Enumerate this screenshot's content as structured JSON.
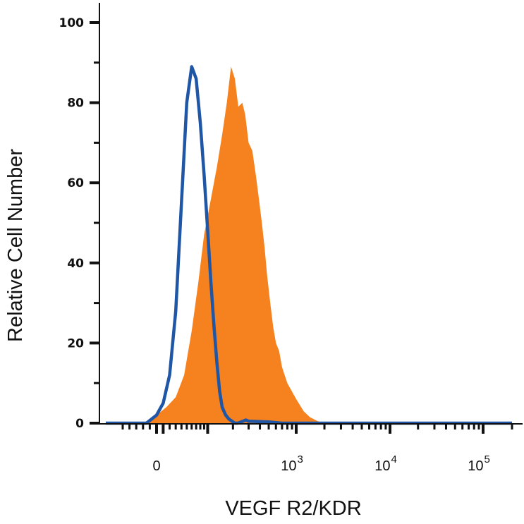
{
  "chart_data": {
    "type": "area",
    "xlabel": "VEGF R2/KDR",
    "ylabel": "Relative Cell Number",
    "x_scale": "biexponential",
    "xlim": [
      -150,
      200000
    ],
    "ylim": [
      0,
      100
    ],
    "y_ticks": [
      0,
      20,
      40,
      60,
      80,
      100
    ],
    "y_tick_labels": [
      "0",
      "20",
      "40",
      "60",
      "80",
      "100"
    ],
    "x_ticks": [
      {
        "value": 0,
        "base": "0",
        "exp": ""
      },
      {
        "value": 1000,
        "base": "10",
        "exp": "3"
      },
      {
        "value": 10000,
        "base": "10",
        "exp": "4"
      },
      {
        "value": 100000,
        "base": "10",
        "exp": "5"
      }
    ],
    "grid": false,
    "series": [
      {
        "style": "filled",
        "color": "#F5821F",
        "x": [
          -150,
          -50,
          -20,
          0,
          15,
          30,
          45,
          60,
          75,
          90,
          110,
          130,
          150,
          170,
          190,
          210,
          230,
          255,
          275,
          300,
          330,
          360,
          390,
          420,
          450,
          480,
          520,
          560,
          600,
          650,
          700,
          800,
          1000,
          1200,
          1400,
          1700,
          2000,
          200000
        ],
        "y": [
          0,
          0,
          0.5,
          2,
          4,
          6.5,
          12,
          23,
          35,
          47,
          56,
          64,
          72,
          80,
          89,
          86,
          79,
          80,
          77,
          70,
          68,
          62,
          56,
          50,
          44,
          37,
          30,
          24,
          20,
          18,
          14,
          10,
          6,
          3,
          1.5,
          0.5,
          0,
          0
        ]
      },
      {
        "style": "line",
        "color": "#1F56A5",
        "x": [
          -150,
          -30,
          -15,
          0,
          10,
          20,
          30,
          40,
          50,
          60,
          70,
          80,
          90,
          100,
          110,
          120,
          130,
          140,
          150,
          165,
          180,
          195,
          210,
          225,
          240,
          260,
          280,
          300,
          500,
          700,
          1000,
          200000
        ],
        "y": [
          0,
          0,
          1,
          2,
          5,
          12,
          28,
          55,
          80,
          89,
          86,
          75,
          62,
          48,
          35,
          24,
          15,
          8,
          4,
          2,
          1,
          0.5,
          0,
          0,
          0.2,
          0.5,
          0.8,
          0.5,
          0.3,
          0,
          0,
          0
        ]
      }
    ]
  }
}
